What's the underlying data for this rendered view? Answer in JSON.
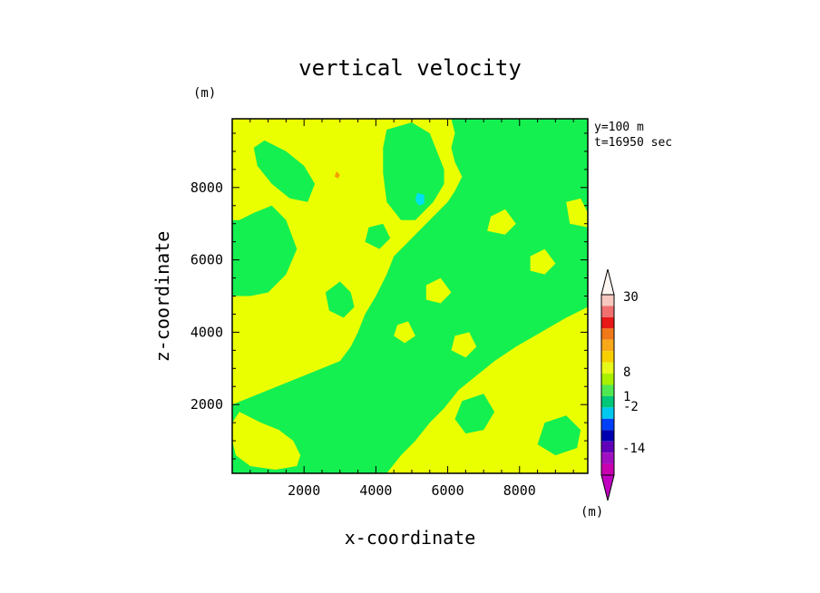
{
  "chart_data": {
    "type": "heatmap",
    "title": "vertical velocity",
    "xlabel": "x-coordinate",
    "ylabel": "z-coordinate",
    "x_unit": "(m)",
    "y_unit": "(m)",
    "info_lines": [
      "y=100 m",
      "t=16950 sec"
    ],
    "xlim": [
      0,
      9900
    ],
    "ylim": [
      100,
      9900
    ],
    "x_ticks": [
      2000,
      4000,
      6000,
      8000
    ],
    "y_ticks": [
      2000,
      4000,
      6000,
      8000
    ],
    "colorbar": {
      "labels": [
        "30",
        "8",
        "1",
        "-2",
        "-14"
      ],
      "colors": [
        "#f8c8c0",
        "#f07070",
        "#e81818",
        "#f07818",
        "#f8a818",
        "#f8d000",
        "#e8f818",
        "#a8f000",
        "#50e850",
        "#00c878",
        "#00c8f0",
        "#0040f8",
        "#0000b0",
        "#6000b8",
        "#a010c0",
        "#c800b0"
      ]
    },
    "palette": {
      "yellow": "#eaff00",
      "green": "#14f050",
      "cyan": "#00e0f0",
      "orange": "#f8a000"
    },
    "regions": [
      {
        "level": "yellow",
        "points": [
          [
            3300,
            9900
          ],
          [
            6100,
            9900
          ],
          [
            6200,
            9500
          ],
          [
            6100,
            9100
          ],
          [
            6200,
            8700
          ],
          [
            6400,
            8300
          ],
          [
            6200,
            7900
          ],
          [
            6000,
            7600
          ],
          [
            5600,
            7200
          ],
          [
            4900,
            6500
          ],
          [
            4500,
            6100
          ],
          [
            4300,
            5600
          ],
          [
            4000,
            5000
          ],
          [
            3700,
            4500
          ],
          [
            3500,
            4000
          ],
          [
            3300,
            3600
          ],
          [
            3000,
            3200
          ],
          [
            2500,
            3000
          ],
          [
            2000,
            2800
          ],
          [
            1500,
            2600
          ],
          [
            1000,
            2400
          ],
          [
            500,
            2200
          ],
          [
            0,
            2000
          ],
          [
            0,
            5000
          ],
          [
            500,
            5000
          ],
          [
            1000,
            5100
          ],
          [
            1500,
            5600
          ],
          [
            1800,
            6300
          ],
          [
            1500,
            7100
          ],
          [
            1100,
            7500
          ],
          [
            600,
            7300
          ],
          [
            200,
            7100
          ],
          [
            0,
            7100
          ],
          [
            0,
            9900
          ]
        ]
      },
      {
        "level": "yellow",
        "points": [
          [
            9900,
            4700
          ],
          [
            9300,
            4400
          ],
          [
            8600,
            4000
          ],
          [
            7900,
            3600
          ],
          [
            7300,
            3200
          ],
          [
            6800,
            2800
          ],
          [
            6300,
            2400
          ],
          [
            5900,
            1900
          ],
          [
            5500,
            1500
          ],
          [
            5100,
            1000
          ],
          [
            4700,
            600
          ],
          [
            4300,
            100
          ],
          [
            9900,
            100
          ]
        ]
      },
      {
        "level": "yellow",
        "points": [
          [
            200,
            1800
          ],
          [
            800,
            1500
          ],
          [
            1300,
            1300
          ],
          [
            1700,
            1000
          ],
          [
            1900,
            600
          ],
          [
            1800,
            300
          ],
          [
            1200,
            200
          ],
          [
            500,
            300
          ],
          [
            100,
            600
          ],
          [
            0,
            1000
          ],
          [
            0,
            1500
          ]
        ]
      },
      {
        "level": "green",
        "points": [
          [
            900,
            9300
          ],
          [
            1500,
            9000
          ],
          [
            2000,
            8600
          ],
          [
            2300,
            8100
          ],
          [
            2100,
            7600
          ],
          [
            1600,
            7700
          ],
          [
            1100,
            8100
          ],
          [
            700,
            8600
          ],
          [
            600,
            9100
          ]
        ]
      },
      {
        "level": "green",
        "points": [
          [
            4300,
            9600
          ],
          [
            5000,
            9800
          ],
          [
            5500,
            9500
          ],
          [
            5700,
            9000
          ],
          [
            5900,
            8500
          ],
          [
            5900,
            8100
          ],
          [
            5600,
            7600
          ],
          [
            5100,
            7100
          ],
          [
            4700,
            7100
          ],
          [
            4300,
            7600
          ],
          [
            4200,
            8400
          ],
          [
            4200,
            9100
          ]
        ]
      },
      {
        "level": "green",
        "points": [
          [
            3000,
            5400
          ],
          [
            3300,
            5100
          ],
          [
            3400,
            4700
          ],
          [
            3100,
            4400
          ],
          [
            2700,
            4600
          ],
          [
            2600,
            5100
          ]
        ]
      },
      {
        "level": "green",
        "points": [
          [
            1800,
            2200
          ],
          [
            2400,
            2100
          ],
          [
            2800,
            1600
          ],
          [
            3000,
            1000
          ],
          [
            2900,
            500
          ],
          [
            2300,
            400
          ],
          [
            1900,
            700
          ],
          [
            1700,
            1200
          ],
          [
            1600,
            1800
          ]
        ]
      },
      {
        "level": "green",
        "points": [
          [
            6900,
            4900
          ],
          [
            7500,
            5100
          ],
          [
            8000,
            4800
          ],
          [
            8100,
            4200
          ],
          [
            7600,
            3900
          ],
          [
            7000,
            4100
          ],
          [
            6700,
            4500
          ]
        ]
      },
      {
        "level": "green",
        "points": [
          [
            6400,
            2100
          ],
          [
            7000,
            2300
          ],
          [
            7300,
            1800
          ],
          [
            7000,
            1300
          ],
          [
            6500,
            1200
          ],
          [
            6200,
            1600
          ]
        ]
      },
      {
        "level": "green",
        "points": [
          [
            8700,
            1500
          ],
          [
            9300,
            1700
          ],
          [
            9700,
            1300
          ],
          [
            9600,
            800
          ],
          [
            9000,
            600
          ],
          [
            8500,
            900
          ]
        ]
      },
      {
        "level": "green",
        "points": [
          [
            4900,
            1800
          ],
          [
            5300,
            1900
          ],
          [
            5500,
            1500
          ],
          [
            5200,
            1200
          ],
          [
            4800,
            1300
          ]
        ]
      },
      {
        "level": "green",
        "points": [
          [
            7600,
            9100
          ],
          [
            8100,
            9300
          ],
          [
            8400,
            8900
          ],
          [
            8200,
            8500
          ],
          [
            7700,
            8600
          ]
        ]
      },
      {
        "level": "green",
        "points": [
          [
            3800,
            6900
          ],
          [
            4200,
            7000
          ],
          [
            4400,
            6600
          ],
          [
            4100,
            6300
          ],
          [
            3700,
            6500
          ]
        ]
      },
      {
        "level": "green",
        "points": [
          [
            5800,
            3400
          ],
          [
            6300,
            3500
          ],
          [
            6500,
            3000
          ],
          [
            6100,
            2700
          ],
          [
            5700,
            2900
          ]
        ]
      },
      {
        "level": "yellow",
        "points": [
          [
            7200,
            7200
          ],
          [
            7600,
            7400
          ],
          [
            7900,
            7000
          ],
          [
            7600,
            6700
          ],
          [
            7100,
            6800
          ]
        ]
      },
      {
        "level": "yellow",
        "points": [
          [
            8300,
            6100
          ],
          [
            8700,
            6300
          ],
          [
            9000,
            5900
          ],
          [
            8700,
            5600
          ],
          [
            8300,
            5700
          ]
        ]
      },
      {
        "level": "yellow",
        "points": [
          [
            5400,
            5300
          ],
          [
            5800,
            5500
          ],
          [
            6100,
            5100
          ],
          [
            5800,
            4800
          ],
          [
            5400,
            4900
          ]
        ]
      },
      {
        "level": "yellow",
        "points": [
          [
            6200,
            3900
          ],
          [
            6600,
            4000
          ],
          [
            6800,
            3600
          ],
          [
            6500,
            3300
          ],
          [
            6100,
            3500
          ]
        ]
      },
      {
        "level": "yellow",
        "points": [
          [
            8800,
            2800
          ],
          [
            9200,
            2900
          ],
          [
            9400,
            2500
          ],
          [
            9100,
            2200
          ],
          [
            8700,
            2400
          ]
        ]
      },
      {
        "level": "yellow",
        "points": [
          [
            7500,
            2000
          ],
          [
            7900,
            2100
          ],
          [
            8100,
            1700
          ],
          [
            7800,
            1400
          ],
          [
            7400,
            1600
          ]
        ]
      },
      {
        "level": "yellow",
        "points": [
          [
            9300,
            7600
          ],
          [
            9700,
            7700
          ],
          [
            9900,
            7300
          ],
          [
            9900,
            6900
          ],
          [
            9400,
            7000
          ]
        ]
      },
      {
        "level": "yellow",
        "points": [
          [
            4600,
            4200
          ],
          [
            4900,
            4300
          ],
          [
            5100,
            3900
          ],
          [
            4800,
            3700
          ],
          [
            4500,
            3900
          ]
        ]
      },
      {
        "level": "cyan",
        "points": [
          [
            5150,
            7850
          ],
          [
            5350,
            7800
          ],
          [
            5350,
            7550
          ],
          [
            5200,
            7500
          ],
          [
            5100,
            7650
          ]
        ]
      },
      {
        "level": "orange",
        "points": [
          [
            2900,
            8450
          ],
          [
            3000,
            8350
          ],
          [
            2950,
            8250
          ],
          [
            2850,
            8300
          ]
        ]
      }
    ]
  }
}
